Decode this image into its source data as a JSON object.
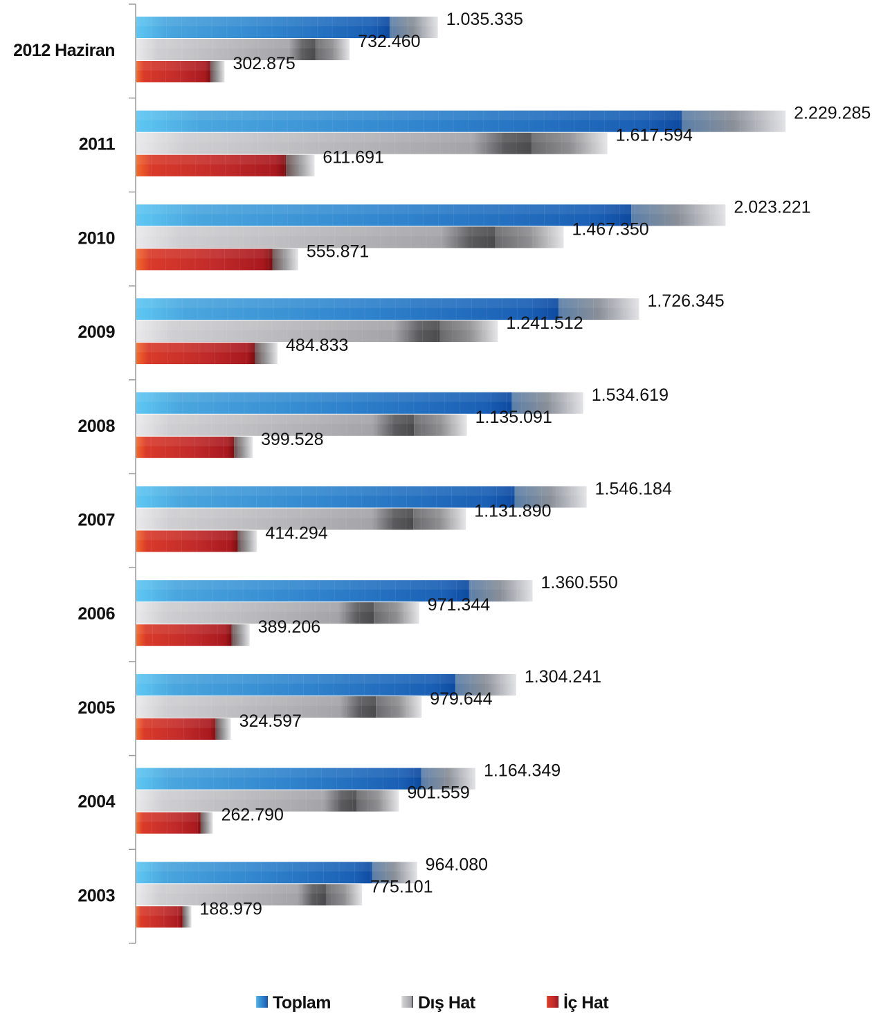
{
  "chart_data": {
    "type": "bar",
    "orientation": "horizontal",
    "categories": [
      "2012 Haziran",
      "2011",
      "2010",
      "2009",
      "2008",
      "2007",
      "2006",
      "2005",
      "2004",
      "2003"
    ],
    "series": [
      {
        "name": "Toplam",
        "color": "#2e7fcf",
        "values": [
          1035335,
          2229285,
          2023221,
          1726345,
          1534619,
          1546184,
          1360550,
          1304241,
          1164349,
          964080
        ],
        "labels": [
          "1.035.335",
          "2.229.285",
          "2.023.221",
          "1.726.345",
          "1.534.619",
          "1.546.184",
          "1.360.550",
          "1.304.241",
          "1.164.349",
          "964.080"
        ]
      },
      {
        "name": "Dış Hat",
        "color": "#a8a8ab",
        "values": [
          732460,
          1617594,
          1467350,
          1241512,
          1135091,
          1131890,
          971344,
          979644,
          901559,
          775101
        ],
        "labels": [
          "732.460",
          "1.617.594",
          "1.467.350",
          "1.241.512",
          "1.135.091",
          "1.131.890",
          "971.344",
          "979.644",
          "901.559",
          "775.101"
        ]
      },
      {
        "name": "İç Hat",
        "color": "#c02a2a",
        "values": [
          302875,
          611691,
          555871,
          484833,
          399528,
          414294,
          389206,
          324597,
          262790,
          188979
        ],
        "labels": [
          "302.875",
          "611.691",
          "555.871",
          "484.833",
          "399.528",
          "414.294",
          "389.206",
          "324.597",
          "262.790",
          "188.979"
        ]
      }
    ],
    "grid": false,
    "legend_position": "bottom-center"
  }
}
